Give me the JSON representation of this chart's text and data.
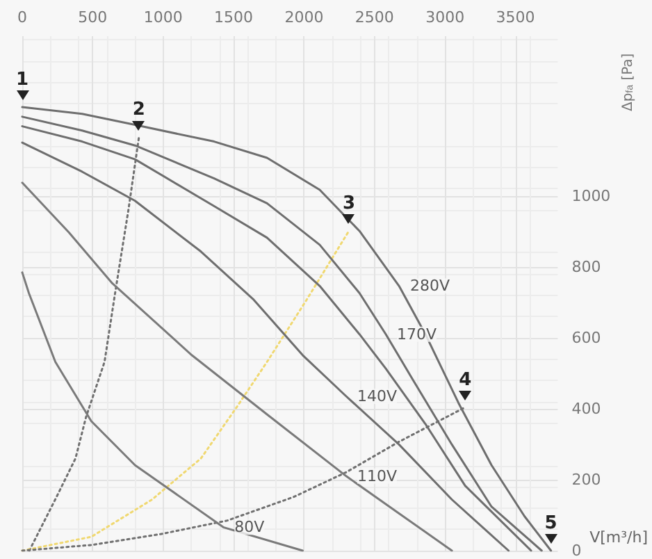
{
  "chart_data": {
    "type": "line",
    "xlabel": "V[m³/h]",
    "ylabel": "Δp$_{fa}$ [Pa]",
    "xlim": [
      0,
      3800
    ],
    "xticks": [
      0,
      500,
      1000,
      1500,
      2000,
      2500,
      3000,
      3500
    ],
    "ylim": [
      0,
      1450
    ],
    "yticks": [
      0,
      200,
      400,
      600,
      800,
      1000
    ],
    "grid": true,
    "legend": false,
    "marker": "none",
    "series": [
      {
        "name": "280V",
        "color": "#6e6e6e",
        "x": [
          0,
          425,
          800,
          1362,
          1737,
          2111,
          2393,
          2674,
          2861,
          3096,
          3330,
          3564,
          3752
        ],
        "values": [
          1250,
          1231,
          1200,
          1153,
          1107,
          1017,
          901,
          746,
          610,
          416,
          241,
          97,
          0
        ]
      },
      {
        "name": "170V",
        "color": "#6e6e6e",
        "x": [
          0,
          425,
          800,
          1362,
          1737,
          2111,
          2393,
          2580,
          2767,
          3049,
          3330,
          3686
        ],
        "values": [
          1223,
          1184,
          1142,
          1049,
          979,
          862,
          726,
          610,
          485,
          299,
          124,
          0
        ]
      },
      {
        "color": "#6e6e6e",
        "x": [
          0,
          425,
          800,
          1362,
          1737,
          2111,
          2393,
          2580,
          2861,
          3143,
          3611
        ],
        "values": [
          1196,
          1153,
          1103,
          971,
          882,
          746,
          610,
          513,
          357,
          183,
          0
        ]
      },
      {
        "name": "140V",
        "color": "#6e6e6e",
        "x": [
          0,
          425,
          800,
          1268,
          1643,
          1990,
          2299,
          2674,
          3049,
          3451
        ],
        "values": [
          1150,
          1068,
          986,
          843,
          707,
          551,
          435,
          299,
          144,
          0
        ]
      },
      {
        "name": "110V",
        "color": "#7a7a7a",
        "x": [
          0,
          331,
          640,
          1203,
          1737,
          2299,
          2674,
          3049
        ],
        "values": [
          1037,
          897,
          753,
          551,
          384,
          210,
          105,
          0
        ]
      },
      {
        "name": "80V",
        "color": "#7a7a7a",
        "x": [
          0,
          47,
          235,
          490,
          800,
          1427,
          1990
        ],
        "values": [
          784,
          726,
          532,
          365,
          241,
          66,
          0
        ]
      },
      {
        "color": "#707070",
        "line_style": "dotted",
        "x": [
          50,
          234,
          378,
          453,
          584,
          659,
          753,
          828
        ],
        "values": [
          0,
          144,
          260,
          377,
          532,
          726,
          959,
          1165
        ]
      },
      {
        "color": "#f0d870",
        "line_style": "dotted",
        "x": [
          0,
          490,
          921,
          1268,
          1521,
          1737,
          2018,
          2318
        ],
        "values": [
          0,
          39,
          144,
          260,
          404,
          532,
          707,
          901
        ]
      },
      {
        "color": "#707070",
        "line_style": "dotted",
        "x": [
          0,
          490,
          987,
          1456,
          1924,
          2299,
          2674,
          3143
        ],
        "values": [
          0,
          16,
          47,
          85,
          151,
          221,
          307,
          404
        ]
      }
    ],
    "annotations": [
      {
        "text": "1",
        "x": 0,
        "y": 1250
      },
      {
        "text": "2",
        "x": 828,
        "y": 1165
      },
      {
        "text": "3",
        "x": 2318,
        "y": 901
      },
      {
        "text": "4",
        "x": 3143,
        "y": 404
      },
      {
        "text": "5",
        "x": 3752,
        "y": 0
      }
    ]
  }
}
